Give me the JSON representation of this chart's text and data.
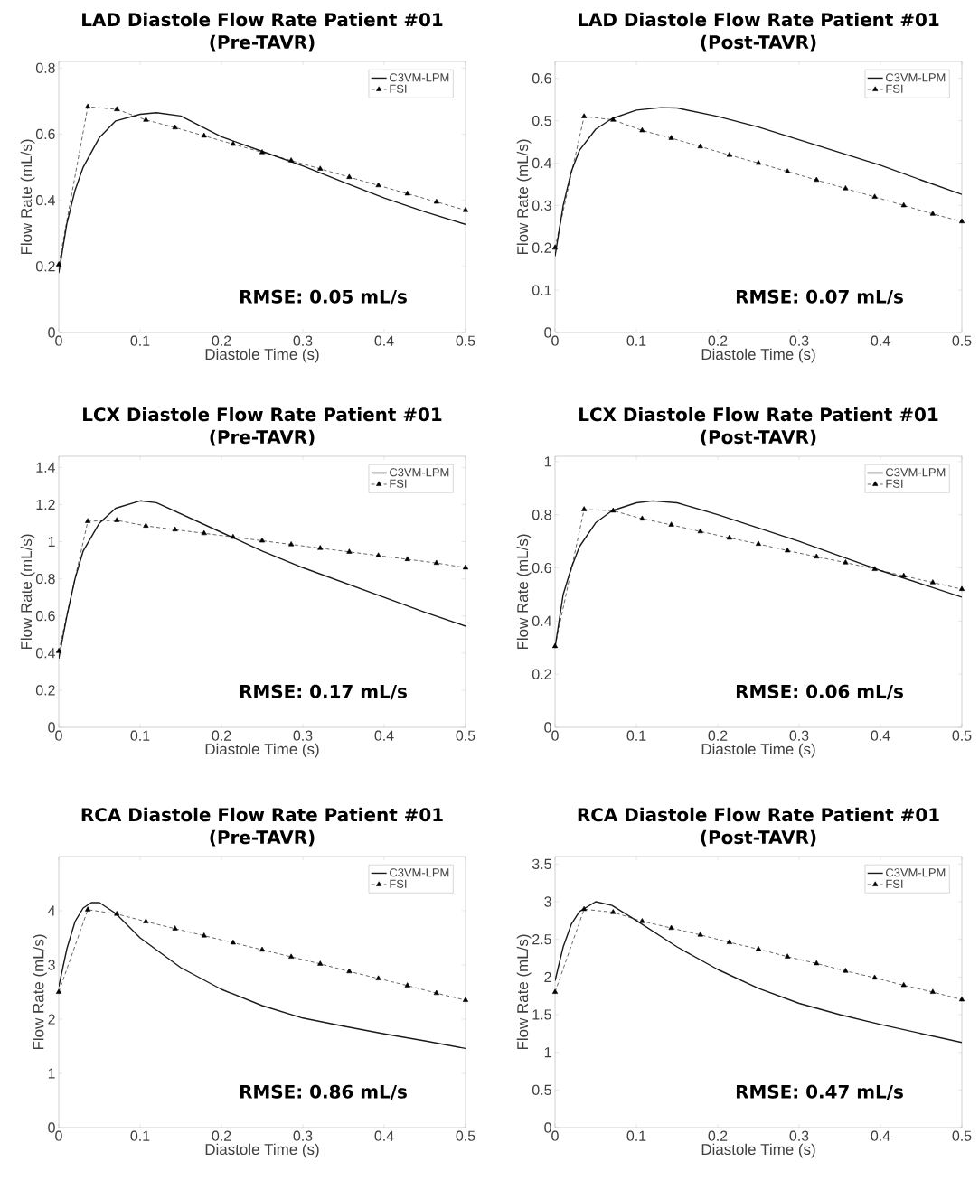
{
  "chart_data": [
    {
      "type": "line",
      "title": "LAD Diastole Flow Rate Patient #01",
      "subtitle": "(Pre-TAVR)",
      "xlabel": "Diastole Time (s)",
      "ylabel": "Flow Rate (mL/s)",
      "xlim": [
        0,
        0.5
      ],
      "ylim": [
        0,
        0.82
      ],
      "xticks": [
        0,
        0.1,
        0.2,
        0.3,
        0.4,
        0.5
      ],
      "yticks": [
        0,
        0.2,
        0.4,
        0.6,
        0.8
      ],
      "legend": "top right",
      "annotations": [
        "RMSE: 0.05 mL/s"
      ],
      "series": [
        {
          "name": "C3VM-LPM",
          "color": "#1a1a1a",
          "x": [
            0,
            0.01,
            0.02,
            0.03,
            0.05,
            0.07,
            0.1,
            0.12,
            0.15,
            0.2,
            0.25,
            0.3,
            0.35,
            0.4,
            0.45,
            0.5
          ],
          "values": [
            0.18,
            0.33,
            0.43,
            0.5,
            0.59,
            0.64,
            0.66,
            0.665,
            0.655,
            0.592,
            0.548,
            0.504,
            0.455,
            0.407,
            0.365,
            0.327
          ]
        },
        {
          "name": "FSI",
          "color": "#000000",
          "line_style": "dashed",
          "marker": "triangle",
          "x": [
            0,
            0.0357,
            0.0714,
            0.1071,
            0.1429,
            0.1786,
            0.2143,
            0.25,
            0.2857,
            0.3214,
            0.3571,
            0.3929,
            0.4286,
            0.4643,
            0.5
          ],
          "values": [
            0.205,
            0.683,
            0.675,
            0.643,
            0.62,
            0.595,
            0.57,
            0.545,
            0.52,
            0.495,
            0.47,
            0.445,
            0.42,
            0.395,
            0.37
          ]
        }
      ]
    },
    {
      "type": "line",
      "title": "LAD Diastole Flow Rate Patient #01",
      "subtitle": "(Post-TAVR)",
      "xlabel": "Diastole Time (s)",
      "ylabel": "Flow Rate (mL/s)",
      "xlim": [
        0,
        0.5
      ],
      "ylim": [
        0,
        0.64
      ],
      "xticks": [
        0,
        0.1,
        0.2,
        0.3,
        0.4,
        0.5
      ],
      "yticks": [
        0,
        0.1,
        0.2,
        0.3,
        0.4,
        0.5,
        0.6
      ],
      "legend": "top right",
      "annotations": [
        "RMSE: 0.07 mL/s"
      ],
      "series": [
        {
          "name": "C3VM-LPM",
          "color": "#1a1a1a",
          "x": [
            0,
            0.01,
            0.02,
            0.03,
            0.05,
            0.07,
            0.1,
            0.13,
            0.15,
            0.2,
            0.25,
            0.3,
            0.35,
            0.4,
            0.45,
            0.5
          ],
          "values": [
            0.18,
            0.3,
            0.38,
            0.43,
            0.48,
            0.505,
            0.525,
            0.531,
            0.53,
            0.51,
            0.485,
            0.455,
            0.425,
            0.395,
            0.36,
            0.326
          ]
        },
        {
          "name": "FSI",
          "color": "#000000",
          "line_style": "dashed",
          "marker": "triangle",
          "x": [
            0,
            0.0357,
            0.0714,
            0.1071,
            0.1429,
            0.1786,
            0.2143,
            0.25,
            0.2857,
            0.3214,
            0.3571,
            0.3929,
            0.4286,
            0.4643,
            0.5
          ],
          "values": [
            0.2,
            0.51,
            0.502,
            0.477,
            0.459,
            0.439,
            0.419,
            0.4,
            0.38,
            0.36,
            0.34,
            0.32,
            0.3,
            0.28,
            0.262
          ]
        }
      ]
    },
    {
      "type": "line",
      "title": "LCX Diastole Flow Rate Patient #01",
      "subtitle": "(Pre-TAVR)",
      "xlabel": "Diastole Time (s)",
      "ylabel": "Flow Rate (mL/s)",
      "xlim": [
        0,
        0.5
      ],
      "ylim": [
        0,
        1.46
      ],
      "xticks": [
        0,
        0.1,
        0.2,
        0.3,
        0.4,
        0.5
      ],
      "yticks": [
        0,
        0.2,
        0.4,
        0.6,
        0.8,
        1,
        1.2,
        1.4
      ],
      "legend": "top right",
      "annotations": [
        "RMSE: 0.17 mL/s"
      ],
      "series": [
        {
          "name": "C3VM-LPM",
          "color": "#1a1a1a",
          "x": [
            0,
            0.01,
            0.02,
            0.03,
            0.05,
            0.07,
            0.1,
            0.12,
            0.15,
            0.2,
            0.25,
            0.3,
            0.35,
            0.4,
            0.45,
            0.5
          ],
          "values": [
            0.37,
            0.6,
            0.8,
            0.95,
            1.1,
            1.18,
            1.22,
            1.21,
            1.15,
            1.05,
            0.95,
            0.86,
            0.78,
            0.7,
            0.62,
            0.545
          ]
        },
        {
          "name": "FSI",
          "color": "#000000",
          "line_style": "dashed",
          "marker": "triangle",
          "x": [
            0,
            0.0357,
            0.0714,
            0.1071,
            0.1429,
            0.1786,
            0.2143,
            0.25,
            0.2857,
            0.3214,
            0.3571,
            0.3929,
            0.4286,
            0.4643,
            0.5
          ],
          "values": [
            0.41,
            1.11,
            1.115,
            1.085,
            1.065,
            1.045,
            1.025,
            1.005,
            0.985,
            0.965,
            0.945,
            0.925,
            0.905,
            0.885,
            0.86
          ]
        }
      ]
    },
    {
      "type": "line",
      "title": "LCX Diastole Flow Rate Patient #01",
      "subtitle": "(Post-TAVR)",
      "xlabel": "Diastole Time (s)",
      "ylabel": "Flow Rate (mL/s)",
      "xlim": [
        0,
        0.5
      ],
      "ylim": [
        0,
        1.02
      ],
      "xticks": [
        0,
        0.1,
        0.2,
        0.3,
        0.4,
        0.5
      ],
      "yticks": [
        0,
        0.2,
        0.4,
        0.6,
        0.8,
        1
      ],
      "legend": "top right",
      "annotations": [
        "RMSE: 0.06 mL/s"
      ],
      "series": [
        {
          "name": "C3VM-LPM",
          "color": "#1a1a1a",
          "x": [
            0,
            0.01,
            0.02,
            0.03,
            0.05,
            0.07,
            0.1,
            0.12,
            0.15,
            0.2,
            0.25,
            0.3,
            0.35,
            0.4,
            0.45,
            0.5
          ],
          "values": [
            0.3,
            0.5,
            0.6,
            0.68,
            0.77,
            0.815,
            0.845,
            0.852,
            0.845,
            0.8,
            0.75,
            0.7,
            0.645,
            0.59,
            0.54,
            0.49
          ]
        },
        {
          "name": "FSI",
          "color": "#000000",
          "line_style": "dashed",
          "marker": "triangle",
          "x": [
            0,
            0.0357,
            0.0714,
            0.1071,
            0.1429,
            0.1786,
            0.2143,
            0.25,
            0.2857,
            0.3214,
            0.3571,
            0.3929,
            0.4286,
            0.4643,
            0.5
          ],
          "values": [
            0.305,
            0.82,
            0.815,
            0.785,
            0.762,
            0.737,
            0.713,
            0.69,
            0.665,
            0.642,
            0.62,
            0.595,
            0.57,
            0.545,
            0.52
          ]
        }
      ]
    },
    {
      "type": "line",
      "title": "RCA Diastole Flow Rate Patient #01",
      "subtitle": "(Pre-TAVR)",
      "xlabel": "Diastole Time (s)",
      "ylabel": "Flow Rate (mL/s)",
      "xlim": [
        0,
        0.5
      ],
      "ylim": [
        0,
        5
      ],
      "xticks": [
        0,
        0.1,
        0.2,
        0.3,
        0.4,
        0.5
      ],
      "yticks": [
        0,
        1,
        2,
        3,
        4
      ],
      "legend": "top right",
      "annotations": [
        "RMSE: 0.86 mL/s"
      ],
      "series": [
        {
          "name": "C3VM-LPM",
          "color": "#1a1a1a",
          "x": [
            0,
            0.01,
            0.02,
            0.03,
            0.04,
            0.05,
            0.07,
            0.1,
            0.15,
            0.2,
            0.25,
            0.3,
            0.35,
            0.4,
            0.45,
            0.5
          ],
          "values": [
            2.6,
            3.3,
            3.8,
            4.05,
            4.15,
            4.15,
            3.95,
            3.5,
            2.95,
            2.55,
            2.25,
            2.02,
            1.87,
            1.73,
            1.6,
            1.46
          ]
        },
        {
          "name": "FSI",
          "color": "#000000",
          "line_style": "dashed",
          "marker": "triangle",
          "x": [
            0,
            0.0357,
            0.0714,
            0.1071,
            0.1429,
            0.1786,
            0.2143,
            0.25,
            0.2857,
            0.3214,
            0.3571,
            0.3929,
            0.4286,
            0.4643,
            0.5
          ],
          "values": [
            2.5,
            4.02,
            3.94,
            3.8,
            3.67,
            3.54,
            3.41,
            3.28,
            3.15,
            3.02,
            2.88,
            2.75,
            2.62,
            2.48,
            2.35
          ]
        }
      ]
    },
    {
      "type": "line",
      "title": "RCA Diastole Flow Rate Patient #01",
      "subtitle": "(Post-TAVR)",
      "xlabel": "Diastole Time (s)",
      "ylabel": "Flow Rate (mL/s)",
      "xlim": [
        0,
        0.5
      ],
      "ylim": [
        0,
        3.6
      ],
      "xticks": [
        0,
        0.1,
        0.2,
        0.3,
        0.4,
        0.5
      ],
      "yticks": [
        0,
        0.5,
        1,
        1.5,
        2,
        2.5,
        3,
        3.5
      ],
      "legend": "top right",
      "annotations": [
        "RMSE: 0.47 mL/s"
      ],
      "series": [
        {
          "name": "C3VM-LPM",
          "color": "#1a1a1a",
          "x": [
            0,
            0.01,
            0.02,
            0.03,
            0.05,
            0.07,
            0.1,
            0.15,
            0.2,
            0.25,
            0.3,
            0.35,
            0.4,
            0.45,
            0.5
          ],
          "values": [
            1.95,
            2.4,
            2.7,
            2.87,
            3.0,
            2.95,
            2.75,
            2.4,
            2.1,
            1.85,
            1.65,
            1.5,
            1.37,
            1.25,
            1.13
          ]
        },
        {
          "name": "FSI",
          "color": "#000000",
          "line_style": "dashed",
          "marker": "triangle",
          "x": [
            0,
            0.0357,
            0.0714,
            0.1071,
            0.1429,
            0.1786,
            0.2143,
            0.25,
            0.2857,
            0.3214,
            0.3571,
            0.3929,
            0.4286,
            0.4643,
            0.5
          ],
          "values": [
            1.8,
            2.9,
            2.86,
            2.74,
            2.65,
            2.56,
            2.46,
            2.37,
            2.27,
            2.18,
            2.08,
            1.99,
            1.89,
            1.8,
            1.7
          ]
        }
      ]
    }
  ]
}
